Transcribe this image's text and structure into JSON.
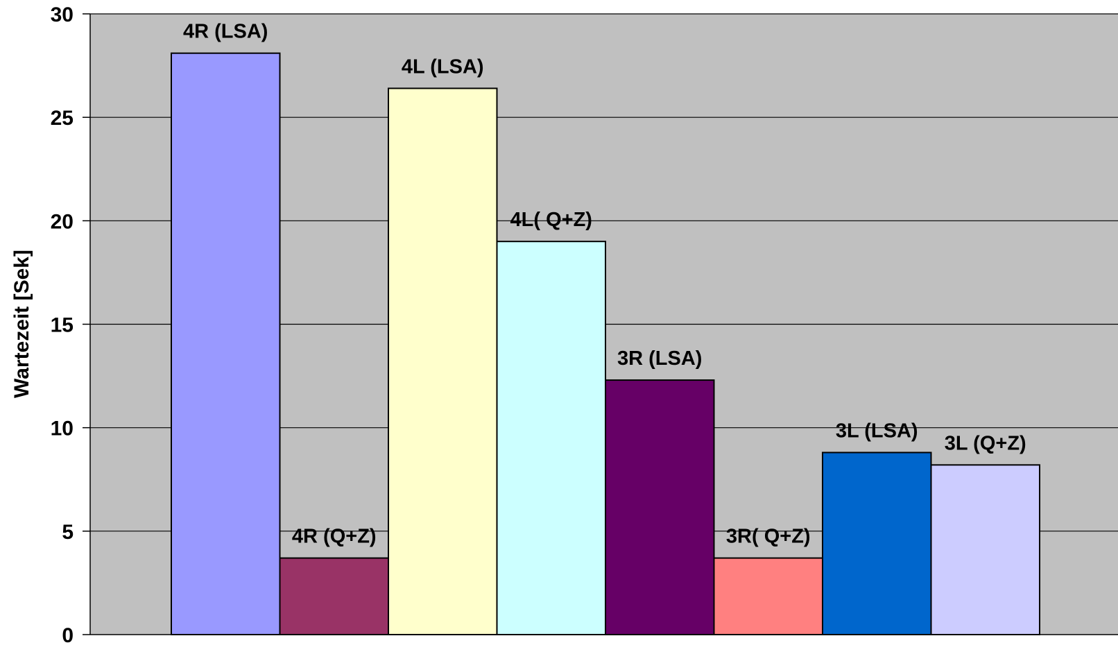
{
  "chart_data": {
    "type": "bar",
    "title": "",
    "xlabel": "",
    "ylabel": "Wartezeit [Sek]",
    "ylim": [
      0,
      30
    ],
    "ytick_step": 5,
    "grid": true,
    "plot_background": "#c0c0c0",
    "categories": [
      "4R (LSA)",
      "4R (Q+Z)",
      "4L (LSA)",
      "4L( Q+Z)",
      "3R (LSA)",
      "3R( Q+Z)",
      "3L (LSA)",
      "3L (Q+Z)"
    ],
    "values": [
      28.1,
      3.7,
      26.4,
      19.0,
      12.3,
      3.7,
      8.8,
      8.2
    ],
    "colors": [
      "#9999ff",
      "#993366",
      "#ffffcc",
      "#ccffff",
      "#660066",
      "#ff8080",
      "#0066cc",
      "#ccccff"
    ]
  }
}
